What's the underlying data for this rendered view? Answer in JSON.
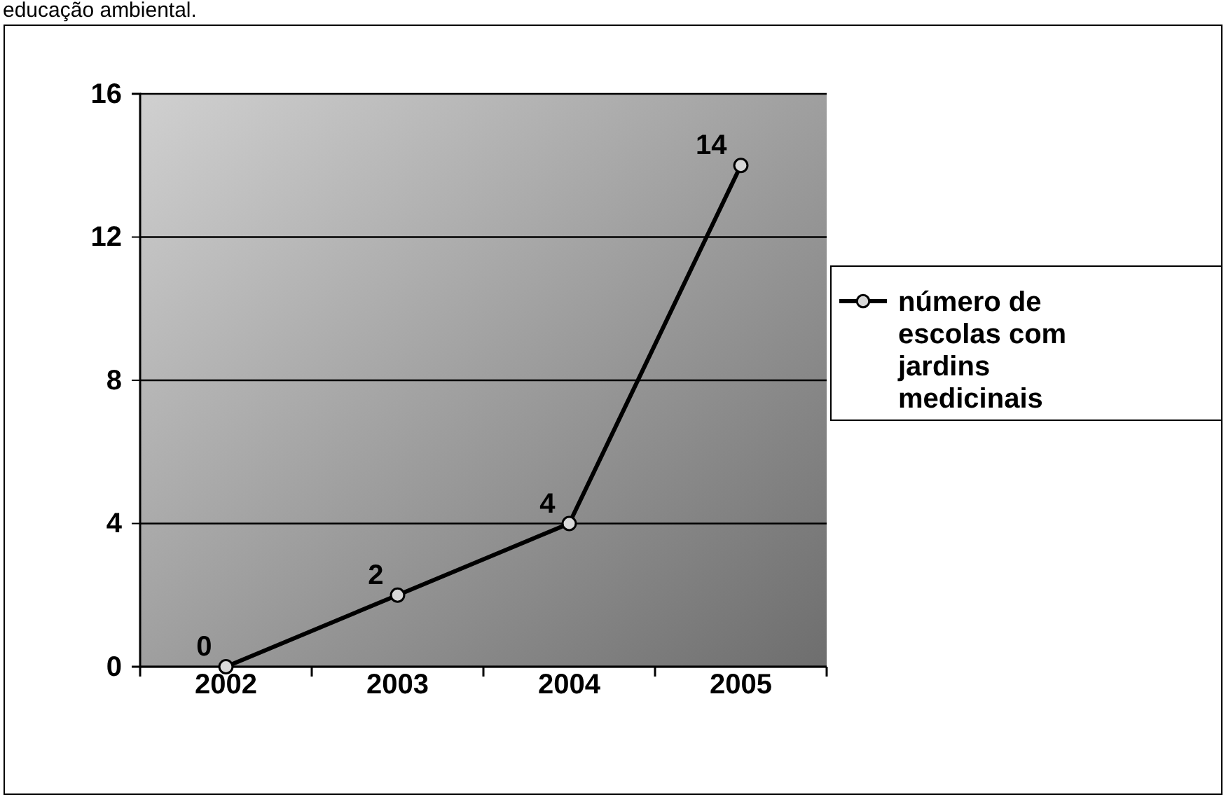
{
  "chart_data": {
    "type": "line",
    "categories": [
      "2002",
      "2003",
      "2004",
      "2005"
    ],
    "series": [
      {
        "name": "número de escolas com jardins medicinais",
        "color": "#000000",
        "values": [
          0,
          2,
          4,
          14
        ]
      }
    ],
    "ylim": [
      0,
      16
    ],
    "yticks": [
      0,
      4,
      8,
      12,
      16
    ],
    "grid": "y",
    "legend": "right",
    "marker": "circle",
    "data_labels": true,
    "annotations": [
      "educação ambiental."
    ]
  }
}
